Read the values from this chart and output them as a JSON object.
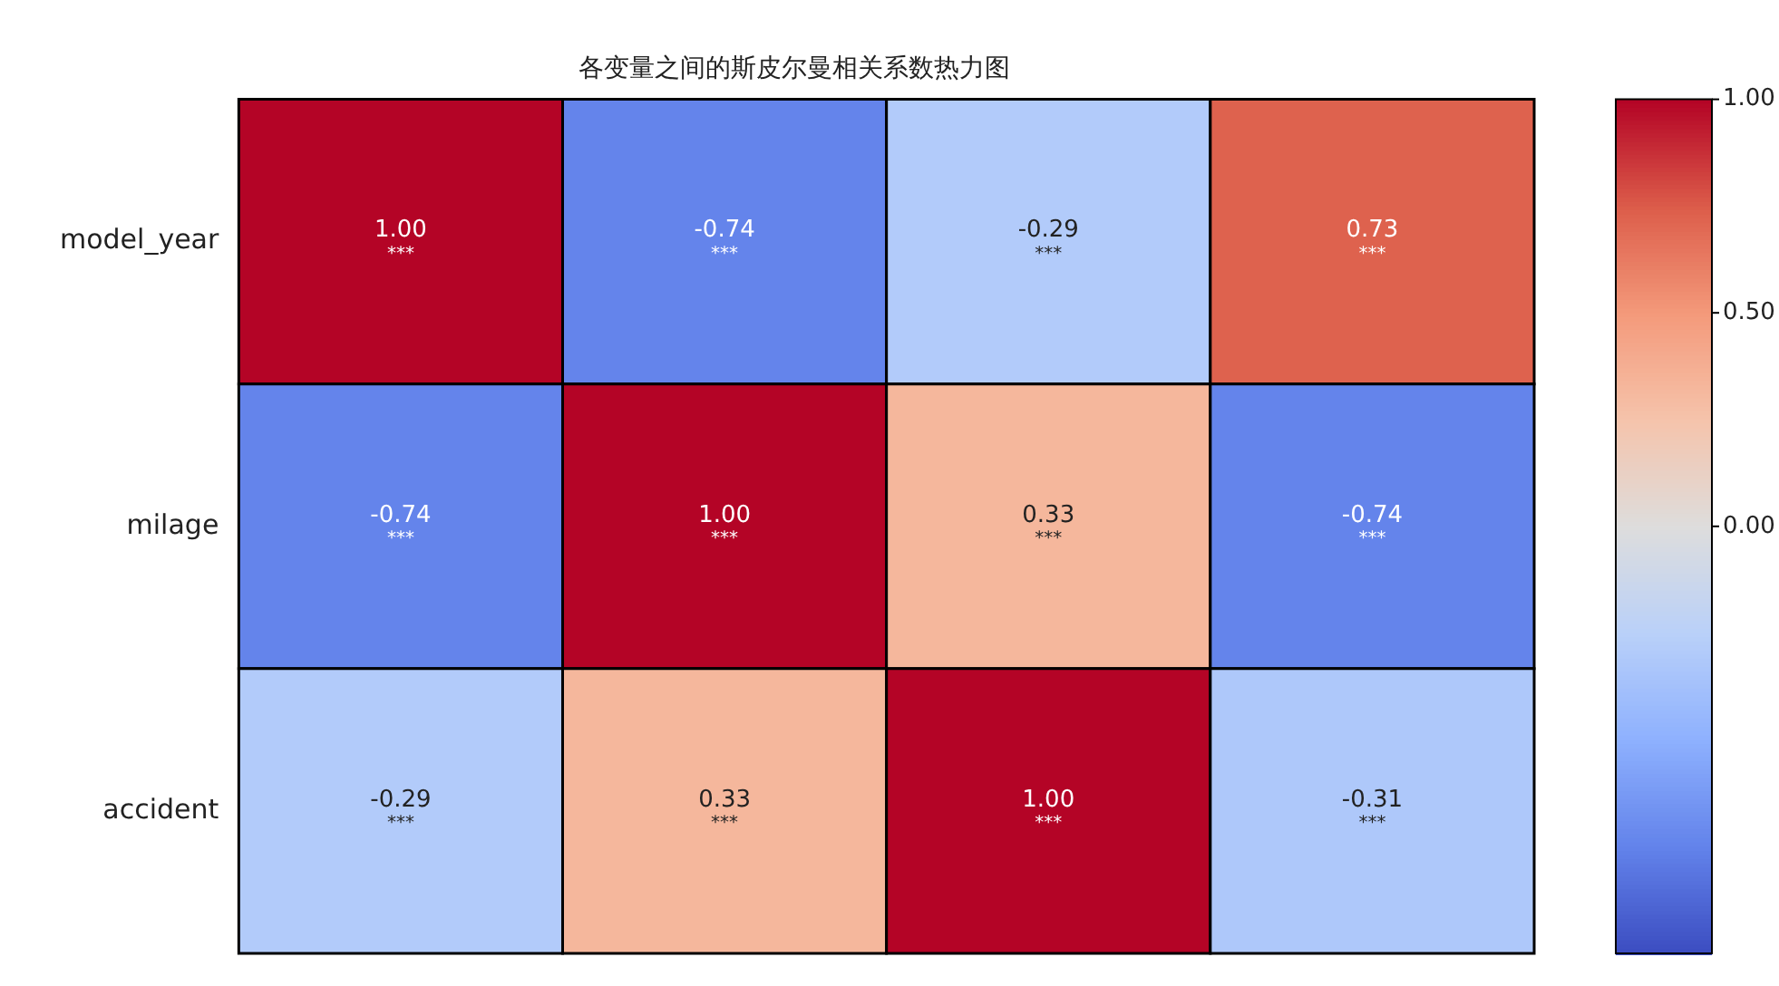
{
  "chart_data": {
    "type": "heatmap",
    "title": "各变量之间的斯皮尔曼相关系数热力图",
    "categories": [
      null,
      null,
      null,
      null
    ],
    "y_categories": [
      "model_year",
      "milage",
      "accident"
    ],
    "cells": [
      [
        1.0,
        -0.74,
        -0.29,
        0.73
      ],
      [
        -0.74,
        1.0,
        0.33,
        -0.74
      ],
      [
        -0.29,
        0.33,
        1.0,
        -0.31
      ]
    ],
    "cell_labels": [
      [
        "1.00\n***",
        "-0.74\n***",
        "-0.29\n***",
        "0.73\n***"
      ],
      [
        "-0.74\n***",
        "1.00\n***",
        "0.33\n***",
        "-0.74\n***"
      ],
      [
        "-0.29\n***",
        "0.33\n***",
        "1.00\n***",
        "-0.31\n***"
      ]
    ],
    "clim": [
      -1,
      1
    ],
    "cticks": [
      {
        "value": 0,
        "label": "0.00"
      },
      {
        "value": 0.5,
        "label": "0.50"
      },
      {
        "value": 1,
        "label": "1.00"
      }
    ],
    "tick_labels": "y"
  }
}
